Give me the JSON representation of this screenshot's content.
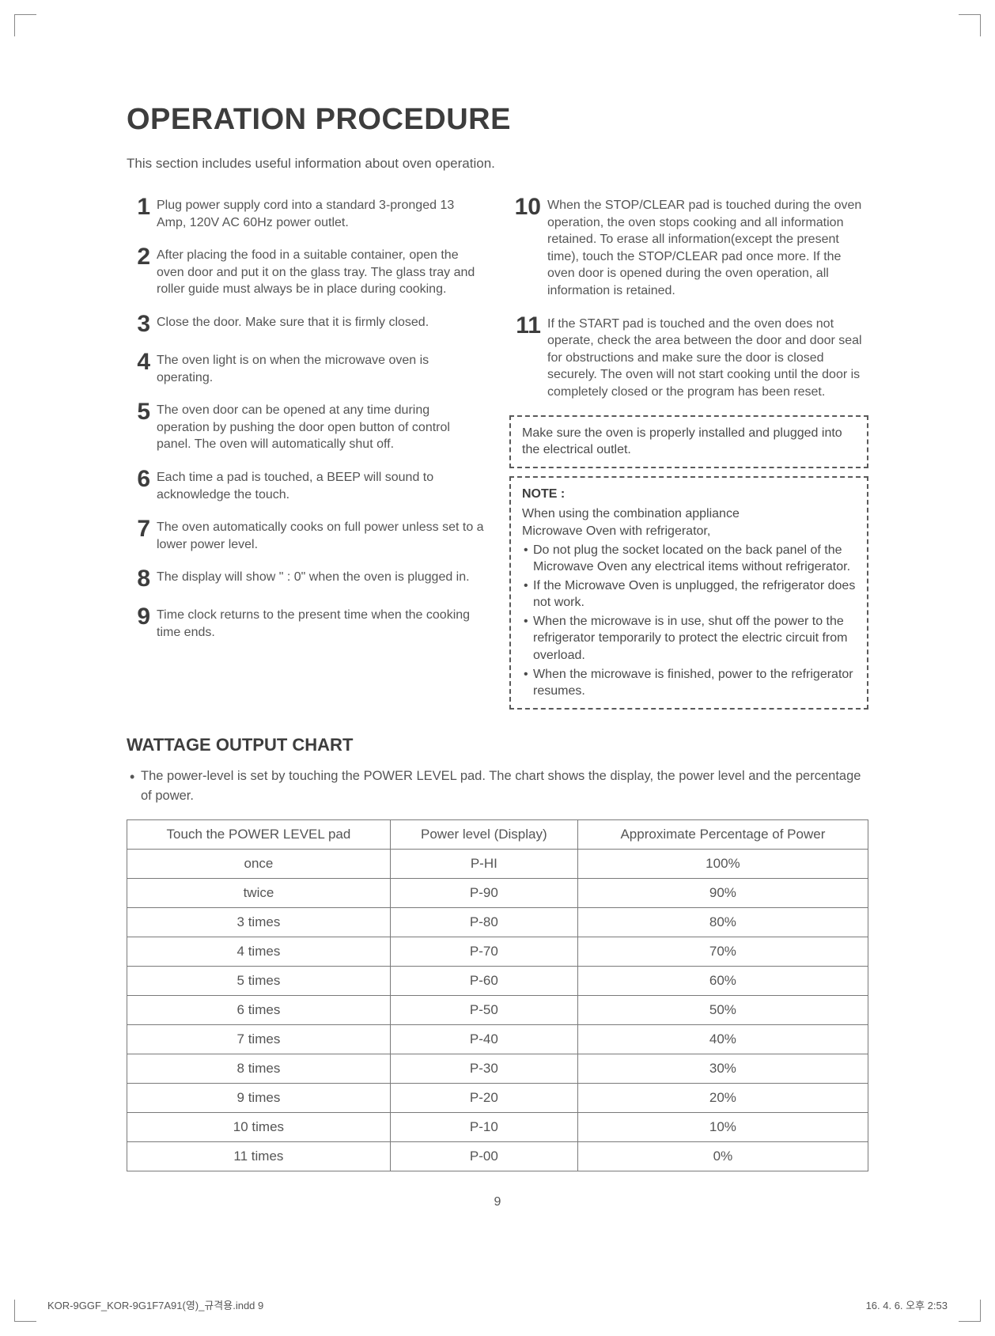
{
  "title": "OPERATION PROCEDURE",
  "intro": "This section includes useful information about oven operation.",
  "left_steps": [
    {
      "n": "1",
      "t": "Plug power supply cord into a standard 3-pronged 13 Amp, 120V AC 60Hz power outlet."
    },
    {
      "n": "2",
      "t": "After placing the food in a suitable container, open the oven door and put it on the glass tray. The glass tray and roller guide must always be in place during cooking."
    },
    {
      "n": "3",
      "t": "Close the door. Make sure that it is firmly closed."
    },
    {
      "n": "4",
      "t": "The oven light is on when the microwave oven is operating."
    },
    {
      "n": "5",
      "t": "The oven door can be opened at any time during operation by pushing the door open button of control panel. The oven will automatically shut off."
    },
    {
      "n": "6",
      "t": "Each time a pad is touched, a BEEP will sound to acknowledge the touch."
    },
    {
      "n": "7",
      "t": "The oven automatically cooks on full power unless set to a lower power level."
    },
    {
      "n": "8",
      "t": "The display will show \"  : 0\" when the oven is plugged in."
    },
    {
      "n": "9",
      "t": "Time clock returns to the present time when the cooking time ends."
    }
  ],
  "right_steps": [
    {
      "n": "10",
      "t": "When the STOP/CLEAR pad is touched during the oven operation, the oven stops cooking and all information retained. To erase all information(except the present time), touch the  STOP/CLEAR pad once more. If the oven door is opened during the oven operation, all information is retained."
    },
    {
      "n": "11",
      "t": "If the START pad is touched and the oven does not operate, check the area between the door and door seal for obstructions and make sure the door is closed securely.  The oven will not start cooking until the door is completely closed or the program has been reset."
    }
  ],
  "warning_box": "Make sure the oven is properly installed and plugged into the electrical outlet.",
  "note": {
    "title": "NOTE :",
    "lead1": "When using the combination appliance",
    "lead2": "Microwave Oven with refrigerator,",
    "bullets": [
      "Do not plug the socket located on the back panel of the Microwave Oven any electrical items without refrigerator.",
      "If the Microwave Oven is unplugged, the refrigerator does not work.",
      "When the microwave is in use, shut off the power to the refrigerator temporarily to protect the electric circuit from overload.",
      "When the microwave is finished, power to the refrigerator resumes."
    ]
  },
  "wattage": {
    "heading": "WATTAGE OUTPUT CHART",
    "desc": "The power-level is set by touching the POWER LEVEL pad. The chart shows the display, the power level and the percentage of power.",
    "columns": [
      "Touch the POWER LEVEL pad",
      "Power level (Display)",
      "Approximate Percentage of Power"
    ],
    "rows": [
      [
        "once",
        "P-HI",
        "100%"
      ],
      [
        "twice",
        "P-90",
        "90%"
      ],
      [
        "3 times",
        "P-80",
        "80%"
      ],
      [
        "4 times",
        "P-70",
        "70%"
      ],
      [
        "5 times",
        "P-60",
        "60%"
      ],
      [
        "6 times",
        "P-50",
        "50%"
      ],
      [
        "7 times",
        "P-40",
        "40%"
      ],
      [
        "8 times",
        "P-30",
        "30%"
      ],
      [
        "9 times",
        "P-20",
        "20%"
      ],
      [
        "10 times",
        "P-10",
        "10%"
      ],
      [
        "11 times",
        "P-00",
        "0%"
      ]
    ]
  },
  "page_number": "9",
  "footer_left": "KOR-9GGF_KOR-9G1F7A91(영)_규격용.indd   9",
  "footer_right": "16. 4. 6.   오후 2:53",
  "colors": {
    "text": "#555555",
    "heading": "#3d3d3d",
    "border": "#7a7a7a",
    "dash": "#5a5a5a",
    "background": "#ffffff"
  },
  "typography": {
    "title_fontsize": 38,
    "body_fontsize": 16,
    "step_num_fontsize": 30,
    "wattage_heading_fontsize": 22,
    "table_fontsize": 17
  }
}
